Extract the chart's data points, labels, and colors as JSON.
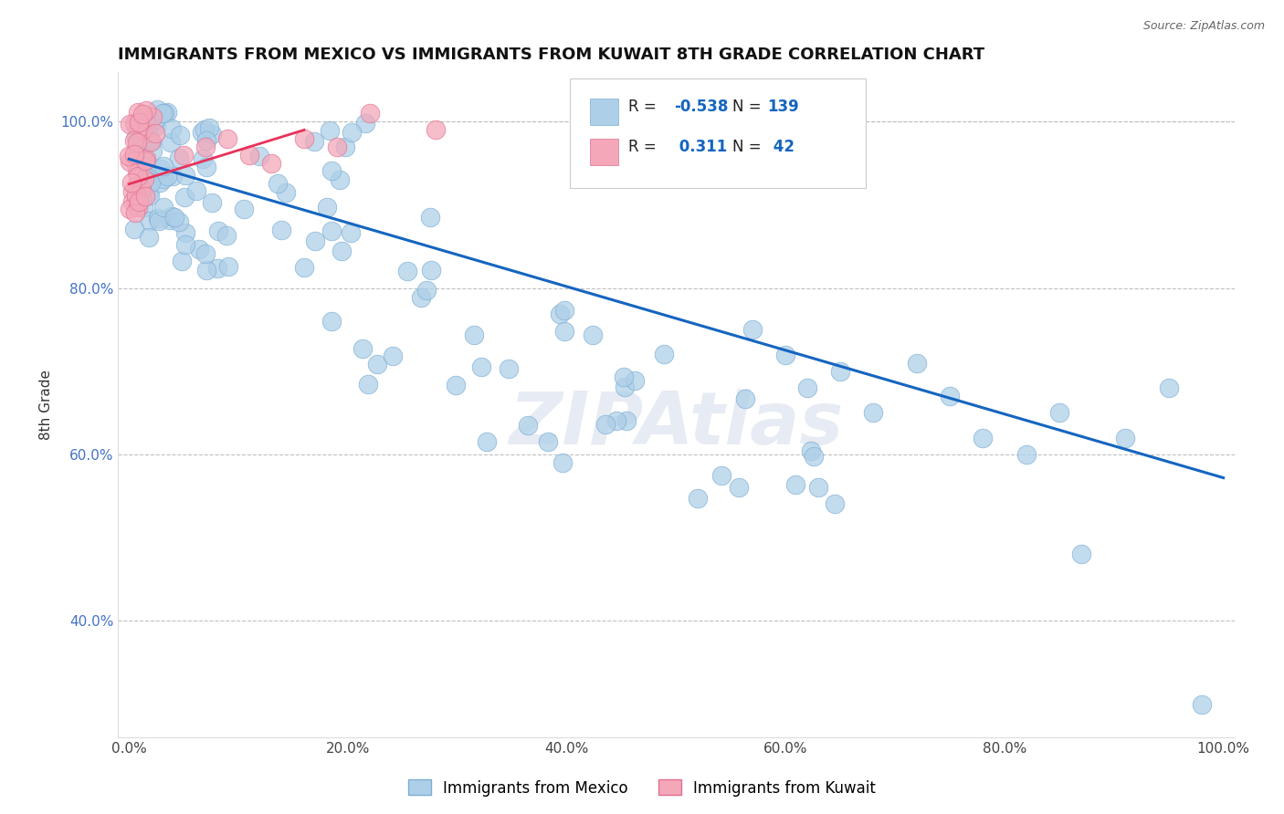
{
  "title": "IMMIGRANTS FROM MEXICO VS IMMIGRANTS FROM KUWAIT 8TH GRADE CORRELATION CHART",
  "source": "Source: ZipAtlas.com",
  "ylabel": "8th Grade",
  "xlim": [
    -0.01,
    1.01
  ],
  "ylim": [
    0.26,
    1.06
  ],
  "blue_R": -0.538,
  "blue_N": 139,
  "pink_R": 0.311,
  "pink_N": 42,
  "blue_color": "#aecfe8",
  "pink_color": "#f4a7b9",
  "blue_line_color": "#1565c0",
  "pink_line_color": "#e8325a",
  "title_fontsize": 13,
  "legend_label_blue": "Immigrants from Mexico",
  "legend_label_pink": "Immigrants from Kuwait",
  "ytick_labels": [
    "40.0%",
    "60.0%",
    "80.0%",
    "100.0%"
  ],
  "ytick_values": [
    0.4,
    0.6,
    0.8,
    1.0
  ],
  "xtick_labels": [
    "0.0%",
    "20.0%",
    "40.0%",
    "60.0%",
    "80.0%",
    "100.0%"
  ],
  "xtick_values": [
    0.0,
    0.2,
    0.4,
    0.6,
    0.8,
    1.0
  ],
  "background_color": "#ffffff",
  "watermark": "ZIPAtlas",
  "blue_line_x": [
    0.0,
    1.0
  ],
  "blue_line_y": [
    0.955,
    0.572
  ],
  "pink_line_x": [
    0.0,
    0.16
  ],
  "pink_line_y": [
    0.925,
    0.99
  ],
  "legend_R_color": "#1565c0",
  "legend_N_color": "#1565c0"
}
